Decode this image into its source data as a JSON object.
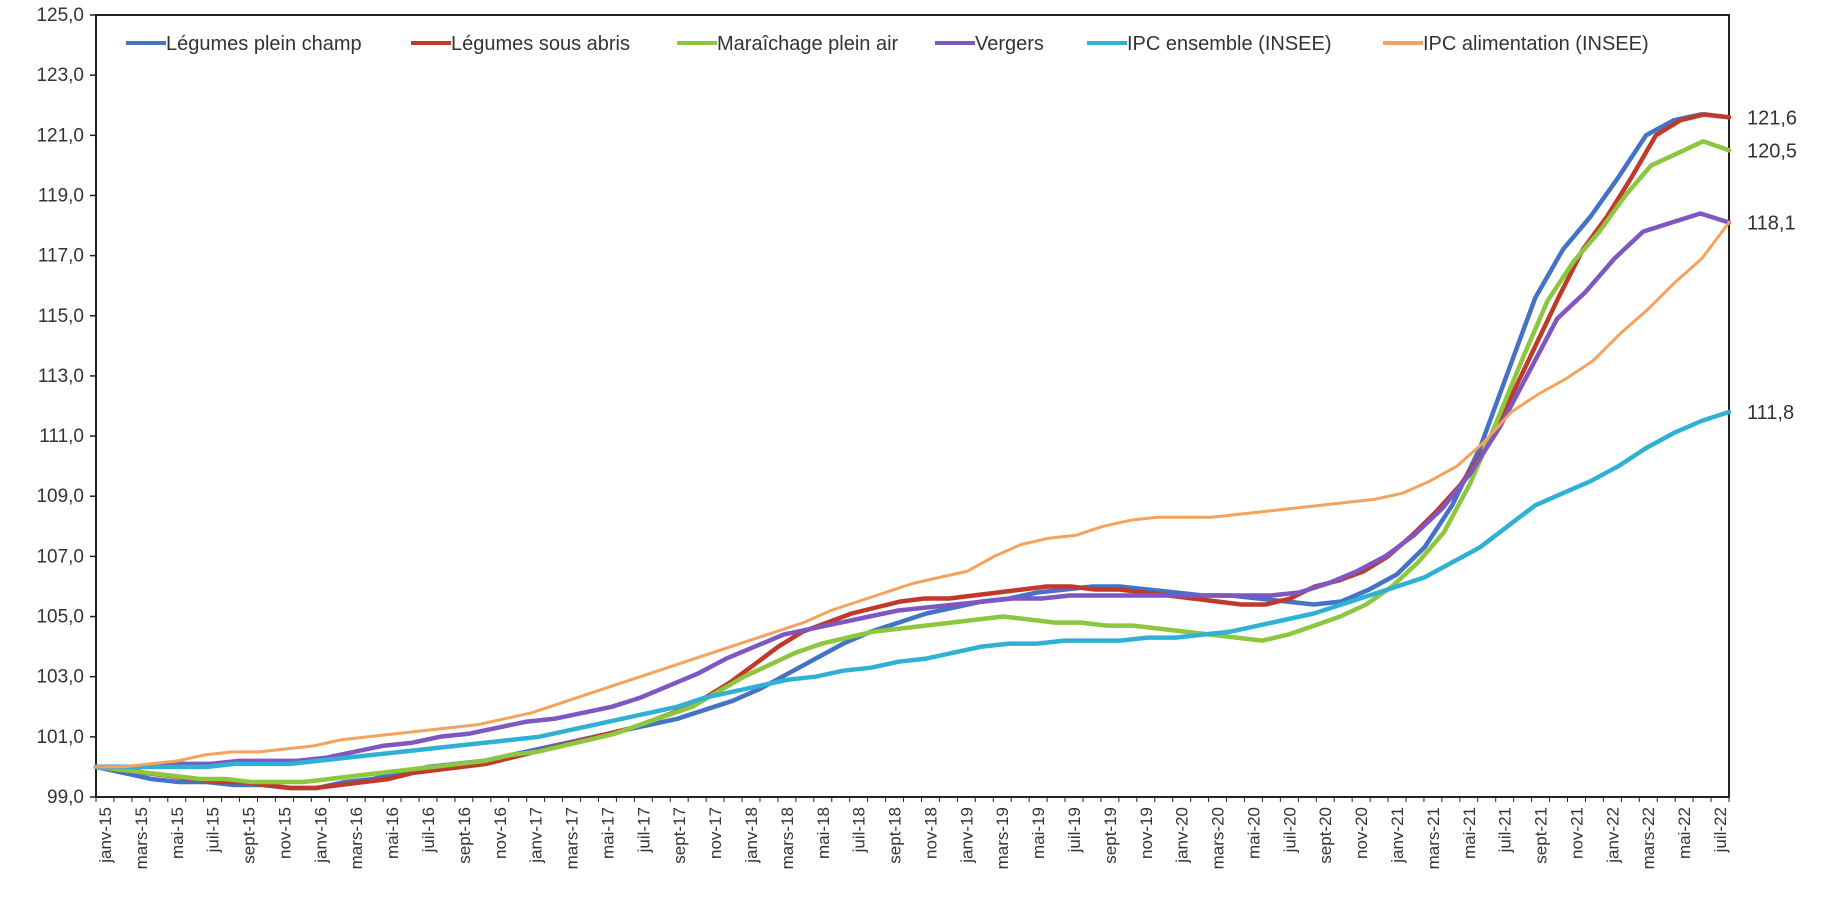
{
  "chart_data": {
    "type": "line",
    "title": "",
    "xlabel": "",
    "ylabel": "",
    "ylim": [
      99,
      125
    ],
    "y_ticks": [
      "99,0",
      "101,0",
      "103,0",
      "105,0",
      "107,0",
      "109,0",
      "111,0",
      "113,0",
      "115,0",
      "117,0",
      "119,0",
      "121,0",
      "123,0",
      "125,0"
    ],
    "x_tick_labels": [
      "janv-15",
      "mars-15",
      "mai-15",
      "juil-15",
      "sept-15",
      "nov-15",
      "janv-16",
      "mars-16",
      "mai-16",
      "juil-16",
      "sept-16",
      "nov-16",
      "janv-17",
      "mars-17",
      "mai-17",
      "juil-17",
      "sept-17",
      "nov-17",
      "janv-18",
      "mars-18",
      "mai-18",
      "juil-18",
      "sept-18",
      "nov-18",
      "janv-19",
      "mars-19",
      "mai-19",
      "juil-19",
      "sept-19",
      "nov-19",
      "janv-20",
      "mars-20",
      "mai-20",
      "juil-20",
      "sept-20",
      "nov-20",
      "janv-21",
      "mars-21",
      "mai-21",
      "juil-21",
      "sept-21",
      "nov-21",
      "janv-22",
      "mars-22",
      "mai-22",
      "juil-22"
    ],
    "x_range": [
      "janv-15",
      "août-22"
    ],
    "grid": false,
    "legend_position": "top",
    "series": [
      {
        "name": "Légumes plein champ",
        "color": "#4472C4",
        "values": [
          100.0,
          99.8,
          99.6,
          99.5,
          99.5,
          99.4,
          99.4,
          99.3,
          99.3,
          99.5,
          99.6,
          99.8,
          100.0,
          100.1,
          100.2,
          100.4,
          100.6,
          100.8,
          101.0,
          101.2,
          101.4,
          101.6,
          101.9,
          102.2,
          102.6,
          103.1,
          103.6,
          104.1,
          104.5,
          104.8,
          105.1,
          105.3,
          105.5,
          105.6,
          105.8,
          105.9,
          106.0,
          106.0,
          105.9,
          105.8,
          105.7,
          105.7,
          105.6,
          105.5,
          105.4,
          105.5,
          105.9,
          106.4,
          107.3,
          108.7,
          110.6,
          113.1,
          115.6,
          117.2,
          118.3,
          119.6,
          121.0,
          121.5,
          121.7,
          121.6
        ]
      },
      {
        "name": "Légumes sous abris",
        "color": "#C0392B",
        "values": [
          100.0,
          100.0,
          99.8,
          99.7,
          99.6,
          99.5,
          99.5,
          99.4,
          99.3,
          99.3,
          99.4,
          99.5,
          99.6,
          99.8,
          99.9,
          100.0,
          100.1,
          100.3,
          100.5,
          100.7,
          100.9,
          101.1,
          101.3,
          101.6,
          101.9,
          102.3,
          102.8,
          103.4,
          104.0,
          104.5,
          104.8,
          105.1,
          105.3,
          105.5,
          105.6,
          105.6,
          105.7,
          105.8,
          105.9,
          106.0,
          106.0,
          105.9,
          105.9,
          105.8,
          105.7,
          105.6,
          105.5,
          105.4,
          105.4,
          105.6,
          106.0,
          106.2,
          106.5,
          107.0,
          107.7,
          108.5,
          109.4,
          110.6,
          112.2,
          113.9,
          115.6,
          117.2,
          118.3,
          119.6,
          121.0,
          121.5,
          121.7,
          121.6
        ]
      },
      {
        "name": "Maraîchage plein air",
        "color": "#8DC63F",
        "values": [
          100.0,
          99.9,
          99.8,
          99.7,
          99.6,
          99.6,
          99.5,
          99.5,
          99.5,
          99.6,
          99.7,
          99.8,
          99.9,
          100.0,
          100.1,
          100.2,
          100.4,
          100.5,
          100.7,
          100.9,
          101.1,
          101.4,
          101.7,
          102.0,
          102.5,
          103.0,
          103.4,
          103.8,
          104.1,
          104.3,
          104.5,
          104.6,
          104.7,
          104.8,
          104.9,
          105.0,
          104.9,
          104.8,
          104.8,
          104.7,
          104.7,
          104.6,
          104.5,
          104.4,
          104.3,
          104.2,
          104.4,
          104.7,
          105.0,
          105.4,
          106.0,
          106.8,
          107.8,
          109.4,
          111.4,
          113.5,
          115.5,
          116.8,
          117.8,
          119.0,
          120.0,
          120.4,
          120.8,
          120.5
        ]
      },
      {
        "name": "Vergers",
        "color": "#7E57C2",
        "values": [
          100.0,
          100.0,
          100.0,
          100.1,
          100.1,
          100.2,
          100.2,
          100.2,
          100.3,
          100.5,
          100.7,
          100.8,
          101.0,
          101.1,
          101.3,
          101.5,
          101.6,
          101.8,
          102.0,
          102.3,
          102.7,
          103.1,
          103.6,
          104.0,
          104.4,
          104.6,
          104.8,
          105.0,
          105.2,
          105.3,
          105.4,
          105.5,
          105.6,
          105.6,
          105.7,
          105.7,
          105.7,
          105.7,
          105.7,
          105.7,
          105.7,
          105.7,
          105.8,
          106.1,
          106.5,
          107.0,
          107.7,
          108.6,
          109.8,
          111.3,
          113.1,
          114.9,
          115.8,
          116.9,
          117.8,
          118.1,
          118.4,
          118.1
        ]
      },
      {
        "name": "IPC  ensemble (INSEE)",
        "color": "#31B0D5",
        "values": [
          100.0,
          100.0,
          100.0,
          100.0,
          100.0,
          100.1,
          100.1,
          100.1,
          100.2,
          100.3,
          100.4,
          100.5,
          100.6,
          100.7,
          100.8,
          100.9,
          101.0,
          101.2,
          101.4,
          101.6,
          101.8,
          102.0,
          102.3,
          102.5,
          102.7,
          102.9,
          103.0,
          103.2,
          103.3,
          103.5,
          103.6,
          103.8,
          104.0,
          104.1,
          104.1,
          104.2,
          104.2,
          104.2,
          104.3,
          104.3,
          104.4,
          104.5,
          104.7,
          104.9,
          105.1,
          105.4,
          105.7,
          106.0,
          106.3,
          106.8,
          107.3,
          108.0,
          108.7,
          109.1,
          109.5,
          110.0,
          110.6,
          111.1,
          111.5,
          111.8
        ]
      },
      {
        "name": "IPC alimentation (INSEE)",
        "color": "#F5A25D",
        "values": [
          100.0,
          100.0,
          100.1,
          100.2,
          100.4,
          100.5,
          100.5,
          100.6,
          100.7,
          100.9,
          101.0,
          101.1,
          101.2,
          101.3,
          101.4,
          101.6,
          101.8,
          102.1,
          102.4,
          102.7,
          103.0,
          103.3,
          103.6,
          103.9,
          104.2,
          104.5,
          104.8,
          105.2,
          105.5,
          105.8,
          106.1,
          106.3,
          106.5,
          107.0,
          107.4,
          107.6,
          107.7,
          108.0,
          108.2,
          108.3,
          108.3,
          108.3,
          108.4,
          108.5,
          108.6,
          108.7,
          108.8,
          108.9,
          109.1,
          109.5,
          110.0,
          110.8,
          111.8,
          112.4,
          112.9,
          113.5,
          114.4,
          115.2,
          116.1,
          116.9,
          118.1
        ]
      }
    ],
    "end_labels": [
      "121,6",
      "120,5",
      "118,1",
      "111,8"
    ]
  }
}
